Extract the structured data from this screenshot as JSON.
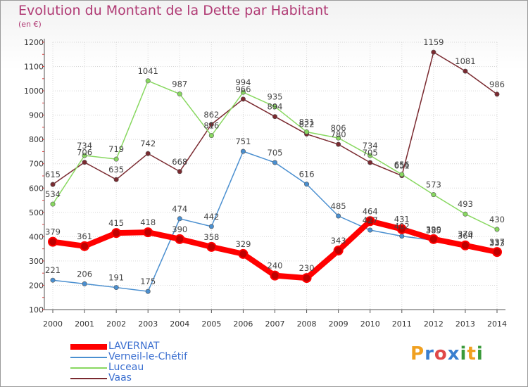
{
  "header": {
    "title": "Evolution du Montant de la Dette par Habitant",
    "unit": "(en €)"
  },
  "logo": {
    "text": "Proxiti",
    "colors": [
      "#f0a020",
      "#3a7fd0",
      "#e04848",
      "#3a7fd0",
      "#3a9a3a",
      "#f0a020",
      "#3a9a3a"
    ]
  },
  "chart_data": {
    "type": "line",
    "x": [
      "2000",
      "2001",
      "2002",
      "2003",
      "2004",
      "2005",
      "2006",
      "2007",
      "2008",
      "2009",
      "2010",
      "2011",
      "2012",
      "2013",
      "2014"
    ],
    "ylim": [
      100,
      1200
    ],
    "yticks": [
      100,
      200,
      300,
      400,
      500,
      600,
      700,
      800,
      900,
      1000,
      1100,
      1200
    ],
    "grid": true,
    "legend_position": "bottom-left",
    "series": [
      {
        "name": "LAVERNAT",
        "color": "#ff0000",
        "values": [
          379,
          361,
          415,
          418,
          390,
          358,
          329,
          240,
          230,
          343,
          464,
          431,
          390,
          364,
          337
        ]
      },
      {
        "name": "Verneil-le-Chétif",
        "color": "#4a8fd0",
        "values": [
          221,
          206,
          191,
          175,
          474,
          442,
          751,
          705,
          616,
          485,
          427,
          402,
          385,
          370,
          333
        ]
      },
      {
        "name": "Luceau",
        "color": "#88d860",
        "values": [
          534,
          734,
          719,
          1041,
          987,
          816,
          994,
          935,
          831,
          806,
          734,
          656,
          573,
          493,
          430
        ]
      },
      {
        "name": "Vaas",
        "color": "#7a2a30",
        "values": [
          615,
          706,
          635,
          742,
          668,
          862,
          966,
          894,
          822,
          780,
          705,
          651,
          1159,
          1081,
          986
        ]
      }
    ]
  }
}
